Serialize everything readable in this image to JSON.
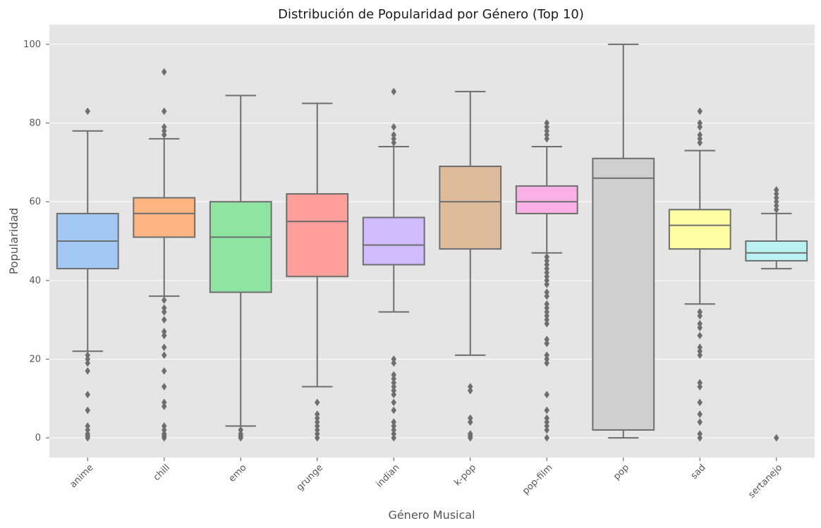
{
  "chart_data": {
    "type": "box",
    "title": "Distribución de Popularidad por Género (Top 10)",
    "xlabel": "Género Musical",
    "ylabel": "Popularidad",
    "ylim": [
      -5,
      105
    ],
    "yticks": [
      0,
      20,
      40,
      60,
      80,
      100
    ],
    "grid": true,
    "background": "#e5e5e5",
    "grid_color": "#ffffff",
    "line_color": "#6e6e6e",
    "categories": [
      {
        "name": "anime",
        "color": "#a1c9f4",
        "q1": 43,
        "median": 50,
        "q3": 57,
        "whisker_low": 22,
        "whisker_high": 78,
        "outliers": [
          0,
          0.5,
          1,
          2,
          3,
          7,
          11,
          17,
          19,
          20,
          21,
          83
        ]
      },
      {
        "name": "chill",
        "color": "#ffb482",
        "q1": 51,
        "median": 57,
        "q3": 61,
        "whisker_low": 36,
        "whisker_high": 76,
        "outliers": [
          0,
          0.5,
          1,
          2,
          3,
          8,
          9,
          13,
          17,
          21,
          23,
          26,
          27,
          30,
          32,
          33,
          35,
          77,
          78,
          79,
          83,
          93
        ]
      },
      {
        "name": "emo",
        "color": "#8de5a1",
        "q1": 37,
        "median": 51,
        "q3": 60,
        "whisker_low": 3,
        "whisker_high": 87,
        "outliers": [
          0,
          0.5,
          1,
          2
        ]
      },
      {
        "name": "grunge",
        "color": "#ff9f9b",
        "q1": 41,
        "median": 55,
        "q3": 62,
        "whisker_low": 13,
        "whisker_high": 85,
        "outliers": [
          0,
          1,
          2,
          3,
          4,
          5,
          6,
          9
        ]
      },
      {
        "name": "indian",
        "color": "#d0bbff",
        "q1": 44,
        "median": 49,
        "q3": 56,
        "whisker_low": 32,
        "whisker_high": 74,
        "outliers": [
          0,
          1,
          2,
          3,
          4,
          7,
          9,
          11,
          12,
          13,
          14,
          15,
          16,
          19,
          20,
          75,
          76,
          77,
          79,
          88
        ]
      },
      {
        "name": "k-pop",
        "color": "#debb9b",
        "q1": 48,
        "median": 60,
        "q3": 69,
        "whisker_low": 21,
        "whisker_high": 88,
        "outliers": [
          0,
          0.5,
          1,
          4,
          5,
          12,
          13
        ]
      },
      {
        "name": "pop-film",
        "color": "#fab0e4",
        "q1": 57,
        "median": 60,
        "q3": 64,
        "whisker_low": 47,
        "whisker_high": 74,
        "outliers": [
          0,
          2,
          3,
          4,
          5,
          7,
          11,
          19,
          20,
          21,
          24,
          25,
          29,
          30,
          31,
          32,
          33,
          34,
          36,
          37,
          39,
          40,
          41,
          42,
          43,
          44,
          45,
          46,
          76,
          77,
          78,
          79,
          80
        ]
      },
      {
        "name": "pop",
        "color": "#cfcfcf",
        "q1": 2,
        "median": 66,
        "q3": 71,
        "whisker_low": 0,
        "whisker_high": 100,
        "outliers": []
      },
      {
        "name": "sad",
        "color": "#fffea3",
        "q1": 48,
        "median": 54,
        "q3": 58,
        "whisker_low": 34,
        "whisker_high": 73,
        "outliers": [
          0,
          1,
          4,
          6,
          9,
          13,
          14,
          21,
          22,
          23,
          26,
          28,
          29,
          31,
          32,
          75,
          76,
          77,
          79,
          80,
          83
        ]
      },
      {
        "name": "sertanejo",
        "color": "#b9f2f0",
        "q1": 45,
        "median": 47,
        "q3": 50,
        "whisker_low": 43,
        "whisker_high": 57,
        "outliers": [
          0,
          58,
          59,
          60,
          61,
          62,
          63
        ]
      }
    ]
  }
}
